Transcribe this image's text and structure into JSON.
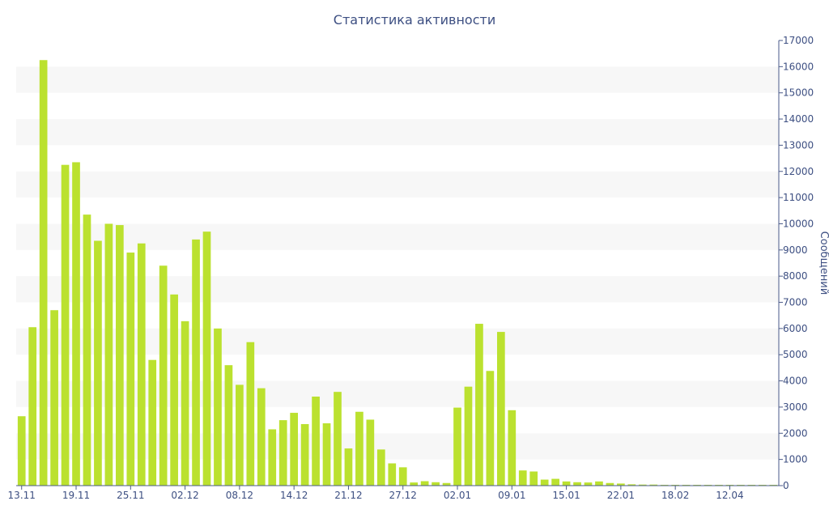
{
  "chart_data": {
    "type": "bar",
    "title": "Статистика активности",
    "ylabel": "Сообщений",
    "xlabel": "",
    "ylim": [
      0,
      17000
    ],
    "yticks": [
      0,
      1000,
      2000,
      3000,
      4000,
      5000,
      6000,
      7000,
      8000,
      9000,
      10000,
      11000,
      12000,
      13000,
      14000,
      15000,
      16000,
      17000
    ],
    "y_axis_side": "right",
    "grid": "alternating horizontal bands",
    "bar_color": "#bbe12f",
    "band_color": "#f7f7f7",
    "text_color": "#3d4f82",
    "x_tick_labels": [
      "13.11",
      "19.11",
      "25.11",
      "02.12",
      "08.12",
      "14.12",
      "21.12",
      "27.12",
      "02.01",
      "09.01",
      "15.01",
      "22.01",
      "18.02",
      "12.04"
    ],
    "x_tick_bar_index": [
      0,
      5,
      10,
      15,
      20,
      25,
      30,
      35,
      40,
      45,
      50,
      55,
      60,
      65
    ],
    "values": [
      2650,
      6050,
      16250,
      6700,
      12250,
      12350,
      10350,
      9350,
      10000,
      9950,
      8900,
      9250,
      4800,
      8400,
      7300,
      6280,
      9400,
      9700,
      6000,
      4600,
      3850,
      5480,
      3720,
      2150,
      2500,
      2780,
      2350,
      3400,
      2380,
      3580,
      1420,
      2820,
      2520,
      1380,
      850,
      700,
      120,
      170,
      130,
      100,
      2980,
      3780,
      6180,
      4380,
      5870,
      2880,
      580,
      540,
      230,
      260,
      160,
      130,
      120,
      160,
      100,
      80,
      50,
      40,
      40,
      30,
      30,
      30,
      30,
      30,
      30,
      30,
      30,
      30,
      30,
      30
    ]
  }
}
